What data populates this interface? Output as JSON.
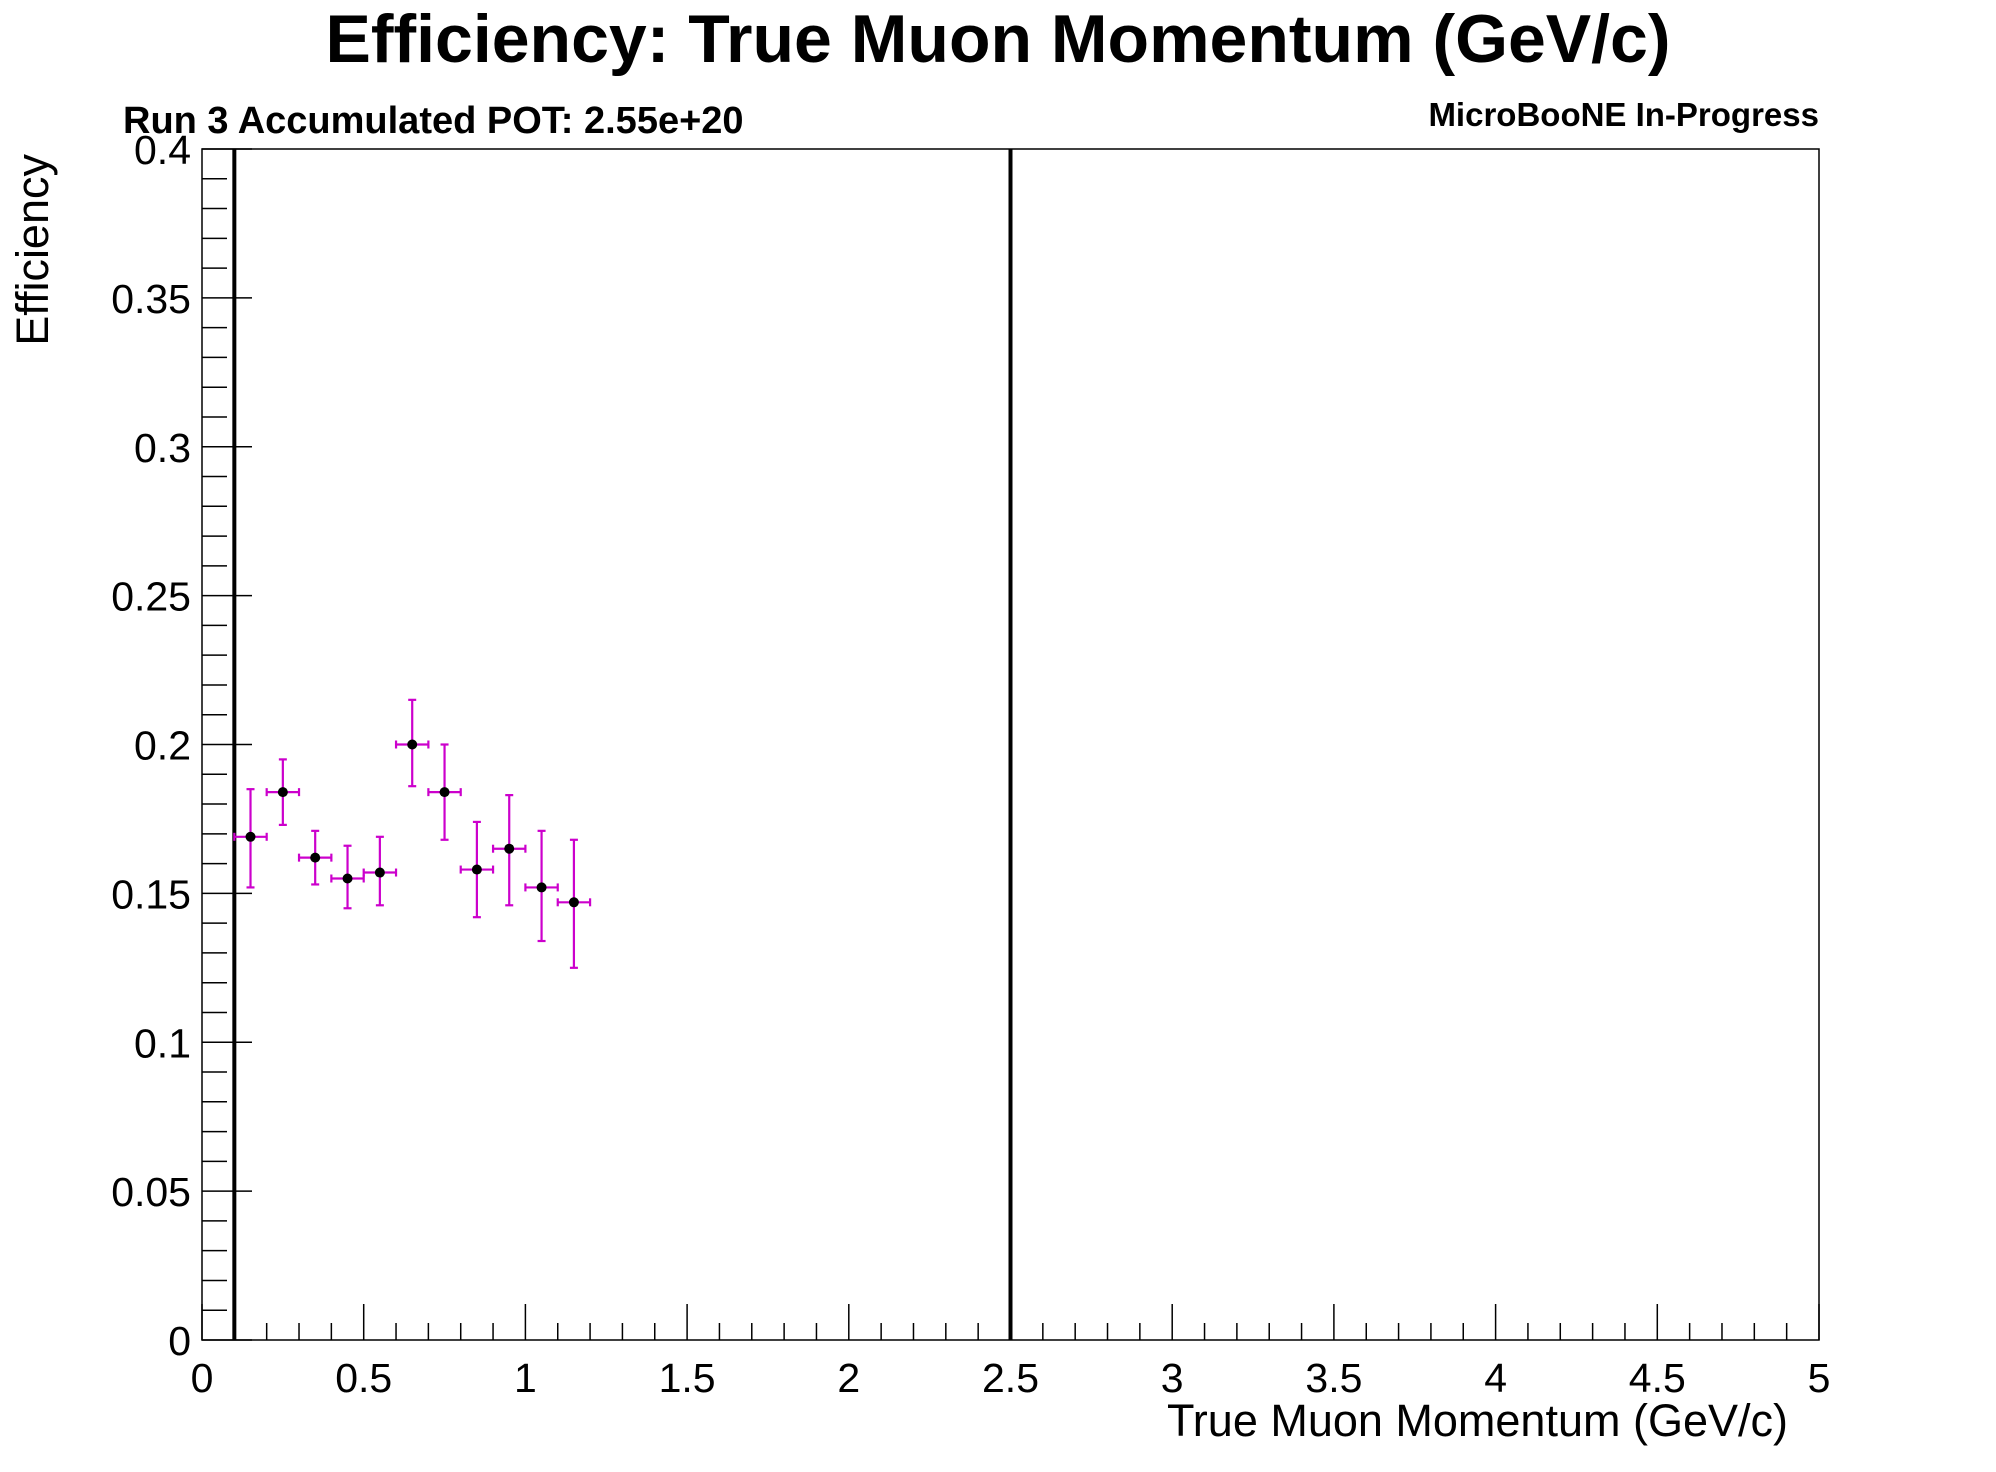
{
  "chart_data": {
    "type": "scatter",
    "title": "Efficiency: True Muon Momentum (GeV/c)",
    "subtitle": "Run 3 Accumulated POT: 2.55e+20",
    "tag": "MicroBooNE In-Progress",
    "xlabel": "True Muon Momentum (GeV/c)",
    "ylabel": "Efficiency",
    "xlim": [
      0,
      5
    ],
    "ylim": [
      0,
      0.4
    ],
    "x_ticks": [
      0,
      0.5,
      1,
      1.5,
      2,
      2.5,
      3,
      3.5,
      4,
      4.5,
      5
    ],
    "x_tick_labels": [
      "0",
      "0.5",
      "1",
      "1.5",
      "2",
      "2.5",
      "3",
      "3.5",
      "4",
      "4.5",
      "5"
    ],
    "y_ticks": [
      0,
      0.05,
      0.1,
      0.15,
      0.2,
      0.25,
      0.3,
      0.35,
      0.4
    ],
    "y_tick_labels": [
      "0",
      "0.05",
      "0.1",
      "0.15",
      "0.2",
      "0.25",
      "0.3",
      "0.35",
      "0.4"
    ],
    "cut_lines_x": [
      0.1,
      2.5
    ],
    "marker_color": "#000000",
    "error_bar_color": "#cc00cc",
    "points": [
      {
        "x": 0.15,
        "y": 0.169,
        "y_lo": 0.152,
        "y_hi": 0.185
      },
      {
        "x": 0.25,
        "y": 0.184,
        "y_lo": 0.173,
        "y_hi": 0.195
      },
      {
        "x": 0.35,
        "y": 0.162,
        "y_lo": 0.153,
        "y_hi": 0.171
      },
      {
        "x": 0.45,
        "y": 0.155,
        "y_lo": 0.145,
        "y_hi": 0.166
      },
      {
        "x": 0.55,
        "y": 0.157,
        "y_lo": 0.146,
        "y_hi": 0.169
      },
      {
        "x": 0.65,
        "y": 0.2,
        "y_lo": 0.186,
        "y_hi": 0.215
      },
      {
        "x": 0.75,
        "y": 0.184,
        "y_lo": 0.168,
        "y_hi": 0.2
      },
      {
        "x": 0.85,
        "y": 0.158,
        "y_lo": 0.142,
        "y_hi": 0.174
      },
      {
        "x": 0.95,
        "y": 0.165,
        "y_lo": 0.146,
        "y_hi": 0.183
      },
      {
        "x": 1.05,
        "y": 0.152,
        "y_lo": 0.134,
        "y_hi": 0.171
      },
      {
        "x": 1.15,
        "y": 0.147,
        "y_lo": 0.125,
        "y_hi": 0.168
      }
    ],
    "x_half_width": 0.05
  }
}
